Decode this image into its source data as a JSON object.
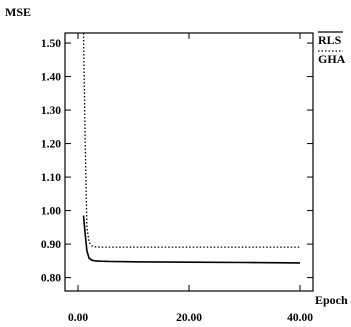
{
  "chart_data": {
    "type": "line",
    "title": "",
    "xlabel": "Epoch",
    "ylabel": "MSE",
    "xlim": [
      0,
      40
    ],
    "ylim": [
      0.76,
      1.53
    ],
    "x_ticks": [
      0,
      20,
      40
    ],
    "x_tick_labels": [
      "0.00",
      "20.00",
      "40.00"
    ],
    "y_ticks": [
      0.8,
      0.9,
      1.0,
      1.1,
      1.2,
      1.3,
      1.4,
      1.5
    ],
    "y_tick_labels": [
      "0.80",
      "0.90",
      "1.00",
      "1.10",
      "1.20",
      "1.30",
      "1.40",
      "1.50"
    ],
    "grid": false,
    "legend_position": "right-top",
    "series": [
      {
        "name": "RLS",
        "style": "solid",
        "x": [
          1,
          1.3,
          1.6,
          2,
          2.5,
          3,
          4,
          6,
          10,
          20,
          30,
          40
        ],
        "y": [
          0.985,
          0.93,
          0.88,
          0.858,
          0.852,
          0.85,
          0.849,
          0.848,
          0.847,
          0.846,
          0.845,
          0.844
        ]
      },
      {
        "name": "GHA",
        "style": "dotted",
        "x": [
          1,
          1.3,
          1.6,
          2,
          2.5,
          3,
          4,
          10,
          20,
          30,
          40
        ],
        "y": [
          1.53,
          1.2,
          0.95,
          0.905,
          0.895,
          0.892,
          0.891,
          0.891,
          0.891,
          0.891,
          0.891
        ]
      }
    ]
  }
}
